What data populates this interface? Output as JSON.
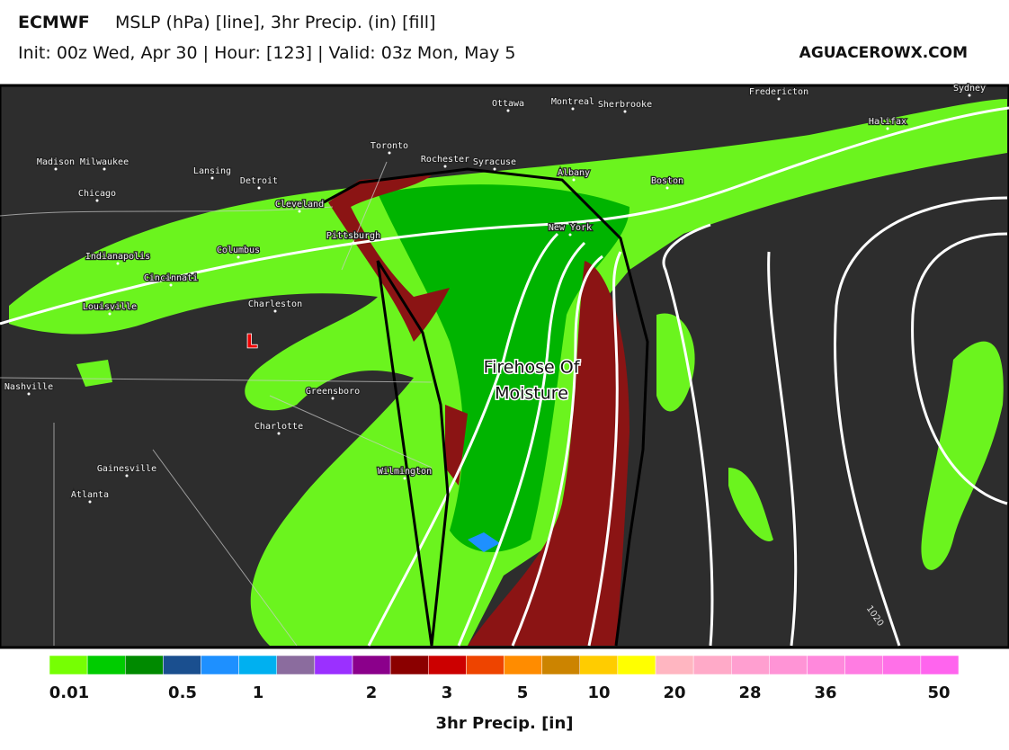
{
  "header": {
    "model": "ECMWF",
    "fields": "MSLP (hPa) [line], 3hr Precip. (in) [fill]",
    "run": "Init: 00z Wed, Apr 30 | Hour: [123] | Valid: 03z Mon, May 5",
    "site": "AGUACEROWX.COM"
  },
  "map": {
    "cities": [
      "Ottawa",
      "Montreal",
      "Sherbrooke",
      "Fredericton",
      "Sydney",
      "Halifax",
      "Toronto",
      "Rochester",
      "Syracuse",
      "Albany",
      "Boston",
      "Madison",
      "Milwaukee",
      "Lansing",
      "Detroit",
      "Chicago",
      "Cleveland",
      "Pittsburgh",
      "New York",
      "Columbus",
      "Indianapolis",
      "Cincinnati",
      "Louisville",
      "Charleston",
      "Nashville",
      "Greensboro",
      "Charlotte",
      "Wilmington",
      "Gainesville",
      "Atlanta"
    ],
    "annotation": [
      "Firehose Of",
      "Moisture"
    ],
    "low_marker": "L",
    "isobar_label": "1020"
  },
  "colorbar": {
    "colors": [
      "#76ff03",
      "#00cc00",
      "#008a00",
      "#1a4f8f",
      "#1e90ff",
      "#00b0f0",
      "#8b6c9e",
      "#9b30ff",
      "#8b008b",
      "#8b0000",
      "#cc0000",
      "#ee4400",
      "#ff8c00",
      "#cc8400",
      "#ffcc00",
      "#ffff00",
      "#ffb6c1",
      "#ffaac8",
      "#ff9fd0",
      "#ff94d6",
      "#ff88dc",
      "#ff7ce2",
      "#ff70e8",
      "#ff64ee"
    ],
    "tick_labels": [
      "0.01",
      "0.5",
      "1",
      "2",
      "3",
      "5",
      "10",
      "20",
      "28",
      "36",
      "50"
    ],
    "title": "3hr Precip. [in]"
  }
}
